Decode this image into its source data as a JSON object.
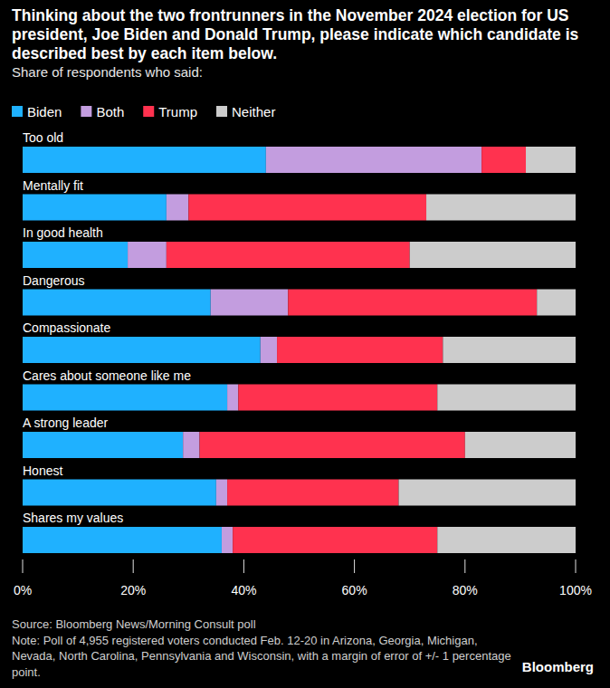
{
  "chart_data": {
    "type": "bar",
    "orientation": "horizontal",
    "stacked": true,
    "grid": false,
    "legend": "top-left",
    "data_labels": false,
    "title": "Thinking about the two frontrunners in the November 2024 election for US president, Joe Biden and Donald Trump, please indicate which candidate is described best by each item below.",
    "subtitle": "Share of respondents who said:",
    "source": "Source: Bloomberg News/Morning Consult poll",
    "note": "Note: Poll of 4,955 registered voters conducted Feb. 12-20 in Arizona, Georgia, Michigan, Nevada, North Carolina, Pennsylvania and Wisconsin, with a margin of error of +/- 1 percentage point.",
    "credit": "Bloomberg",
    "categories": [
      "Too old",
      "Mentally fit",
      "In good health",
      "Dangerous",
      "Compassionate",
      "Cares about someone like me",
      "A strong leader",
      "Honest",
      "Shares my values"
    ],
    "series": [
      {
        "name": "Biden",
        "color": "#1fb1ff",
        "values": [
          44,
          26,
          19,
          34,
          43,
          37,
          29,
          35,
          36
        ]
      },
      {
        "name": "Both",
        "color": "#c39ddf",
        "values": [
          39,
          4,
          7,
          14,
          3,
          2,
          3,
          2,
          2
        ]
      },
      {
        "name": "Trump",
        "color": "#ff324f",
        "values": [
          8,
          43,
          44,
          45,
          30,
          36,
          48,
          31,
          37
        ]
      },
      {
        "name": "Neither",
        "color": "#cccccc",
        "values": [
          9,
          27,
          30,
          7,
          24,
          25,
          20,
          32,
          25
        ]
      }
    ],
    "xlim": [
      0,
      100
    ],
    "xticks": [
      {
        "value": 0,
        "label": "0%"
      },
      {
        "value": 20,
        "label": "20%"
      },
      {
        "value": 40,
        "label": "40%"
      },
      {
        "value": 60,
        "label": "60%"
      },
      {
        "value": 80,
        "label": "80%"
      },
      {
        "value": 100,
        "label": "100%"
      }
    ]
  }
}
